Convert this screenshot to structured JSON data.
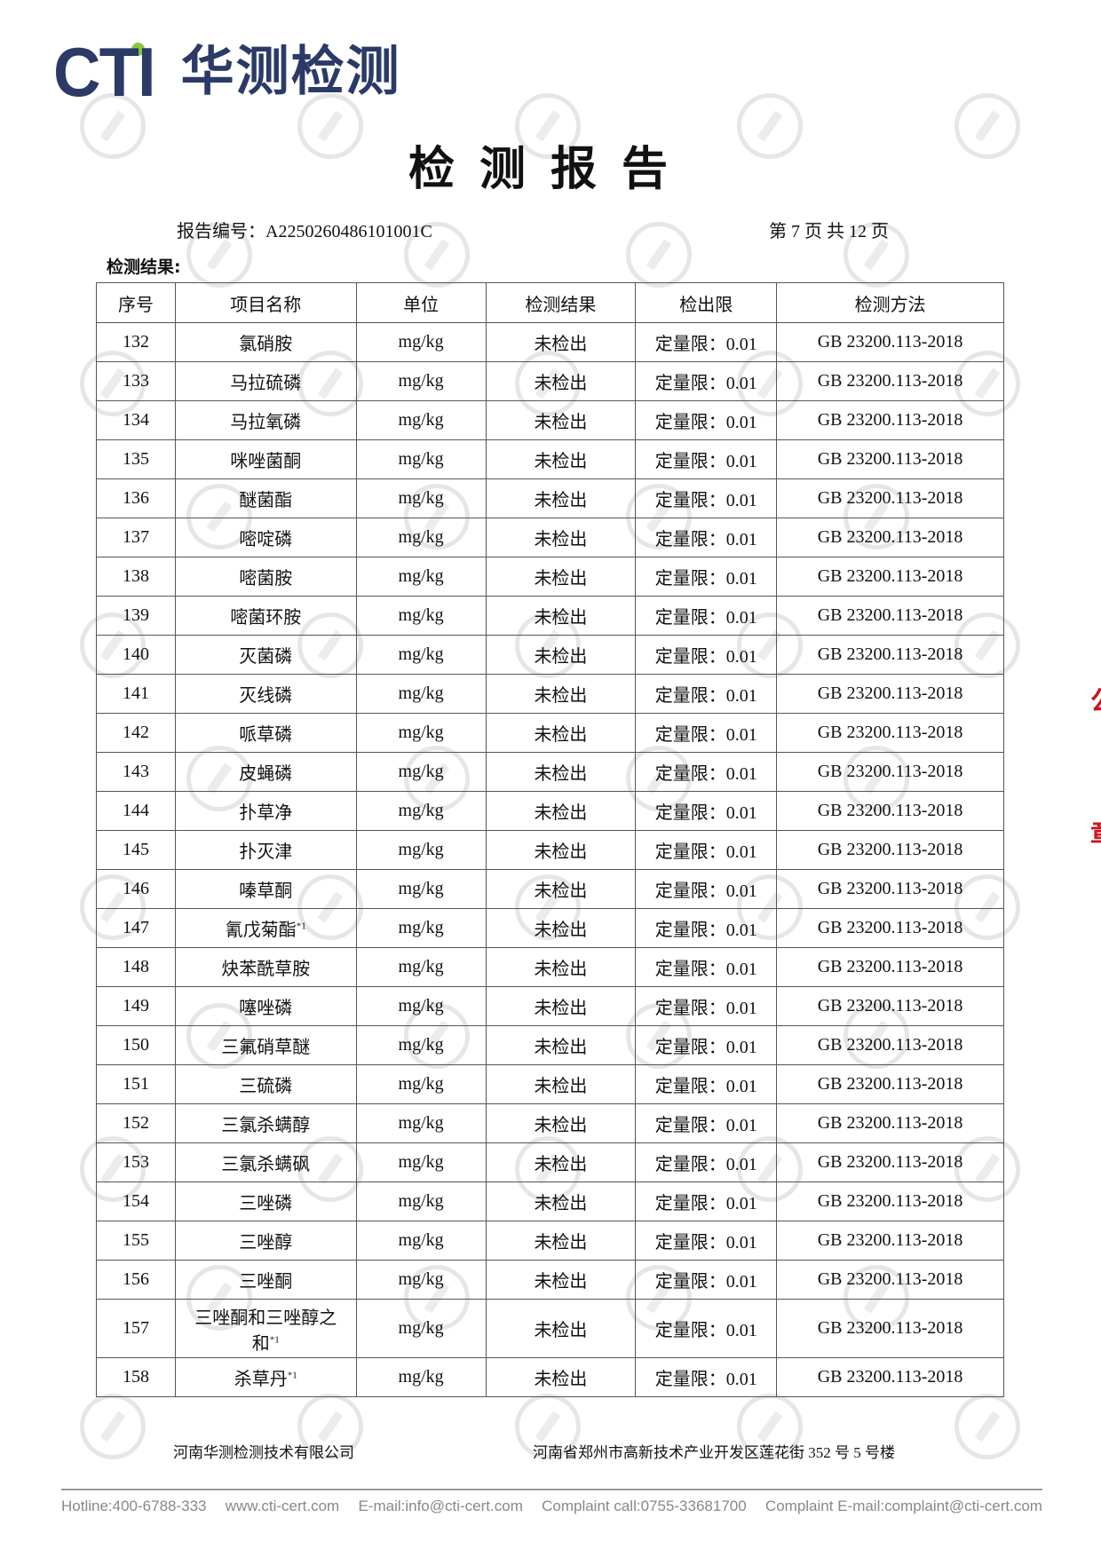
{
  "logo": {
    "brand": "CTI",
    "name_cn": "华测检测",
    "brand_color": "#2b3a67",
    "dot_color": "#8dc63f"
  },
  "watermark": "CTI",
  "title": "检测报告",
  "report_no_label": "报告编号：A2250260486101001C",
  "page_info": "第 7 页  共 12 页",
  "section_label": "检测结果:",
  "table": {
    "headers": [
      "序号",
      "项目名称",
      "单位",
      "检测结果",
      "检出限",
      "检测方法"
    ],
    "rows": [
      {
        "no": "132",
        "name": "氯硝胺",
        "sup": "",
        "unit": "mg/kg",
        "result": "未检出",
        "limit": "定量限：0.01",
        "method": "GB 23200.113-2018"
      },
      {
        "no": "133",
        "name": "马拉硫磷",
        "sup": "",
        "unit": "mg/kg",
        "result": "未检出",
        "limit": "定量限：0.01",
        "method": "GB 23200.113-2018"
      },
      {
        "no": "134",
        "name": "马拉氧磷",
        "sup": "",
        "unit": "mg/kg",
        "result": "未检出",
        "limit": "定量限：0.01",
        "method": "GB 23200.113-2018"
      },
      {
        "no": "135",
        "name": "咪唑菌酮",
        "sup": "",
        "unit": "mg/kg",
        "result": "未检出",
        "limit": "定量限：0.01",
        "method": "GB 23200.113-2018"
      },
      {
        "no": "136",
        "name": "醚菌酯",
        "sup": "",
        "unit": "mg/kg",
        "result": "未检出",
        "limit": "定量限：0.01",
        "method": "GB 23200.113-2018"
      },
      {
        "no": "137",
        "name": "嘧啶磷",
        "sup": "",
        "unit": "mg/kg",
        "result": "未检出",
        "limit": "定量限：0.01",
        "method": "GB 23200.113-2018"
      },
      {
        "no": "138",
        "name": "嘧菌胺",
        "sup": "",
        "unit": "mg/kg",
        "result": "未检出",
        "limit": "定量限：0.01",
        "method": "GB 23200.113-2018"
      },
      {
        "no": "139",
        "name": "嘧菌环胺",
        "sup": "",
        "unit": "mg/kg",
        "result": "未检出",
        "limit": "定量限：0.01",
        "method": "GB 23200.113-2018"
      },
      {
        "no": "140",
        "name": "灭菌磷",
        "sup": "",
        "unit": "mg/kg",
        "result": "未检出",
        "limit": "定量限：0.01",
        "method": "GB 23200.113-2018"
      },
      {
        "no": "141",
        "name": "灭线磷",
        "sup": "",
        "unit": "mg/kg",
        "result": "未检出",
        "limit": "定量限：0.01",
        "method": "GB 23200.113-2018"
      },
      {
        "no": "142",
        "name": "哌草磷",
        "sup": "",
        "unit": "mg/kg",
        "result": "未检出",
        "limit": "定量限：0.01",
        "method": "GB 23200.113-2018"
      },
      {
        "no": "143",
        "name": "皮蝇磷",
        "sup": "",
        "unit": "mg/kg",
        "result": "未检出",
        "limit": "定量限：0.01",
        "method": "GB 23200.113-2018"
      },
      {
        "no": "144",
        "name": "扑草净",
        "sup": "",
        "unit": "mg/kg",
        "result": "未检出",
        "limit": "定量限：0.01",
        "method": "GB 23200.113-2018"
      },
      {
        "no": "145",
        "name": "扑灭津",
        "sup": "",
        "unit": "mg/kg",
        "result": "未检出",
        "limit": "定量限：0.01",
        "method": "GB 23200.113-2018"
      },
      {
        "no": "146",
        "name": "嗪草酮",
        "sup": "",
        "unit": "mg/kg",
        "result": "未检出",
        "limit": "定量限：0.01",
        "method": "GB 23200.113-2018"
      },
      {
        "no": "147",
        "name": "氰戊菊酯",
        "sup": "*1",
        "unit": "mg/kg",
        "result": "未检出",
        "limit": "定量限：0.01",
        "method": "GB 23200.113-2018"
      },
      {
        "no": "148",
        "name": "炔苯酰草胺",
        "sup": "",
        "unit": "mg/kg",
        "result": "未检出",
        "limit": "定量限：0.01",
        "method": "GB 23200.113-2018"
      },
      {
        "no": "149",
        "name": "噻唑磷",
        "sup": "",
        "unit": "mg/kg",
        "result": "未检出",
        "limit": "定量限：0.01",
        "method": "GB 23200.113-2018"
      },
      {
        "no": "150",
        "name": "三氟硝草醚",
        "sup": "",
        "unit": "mg/kg",
        "result": "未检出",
        "limit": "定量限：0.01",
        "method": "GB 23200.113-2018"
      },
      {
        "no": "151",
        "name": "三硫磷",
        "sup": "",
        "unit": "mg/kg",
        "result": "未检出",
        "limit": "定量限：0.01",
        "method": "GB 23200.113-2018"
      },
      {
        "no": "152",
        "name": "三氯杀螨醇",
        "sup": "",
        "unit": "mg/kg",
        "result": "未检出",
        "limit": "定量限：0.01",
        "method": "GB 23200.113-2018"
      },
      {
        "no": "153",
        "name": "三氯杀螨砜",
        "sup": "",
        "unit": "mg/kg",
        "result": "未检出",
        "limit": "定量限：0.01",
        "method": "GB 23200.113-2018"
      },
      {
        "no": "154",
        "name": "三唑磷",
        "sup": "",
        "unit": "mg/kg",
        "result": "未检出",
        "limit": "定量限：0.01",
        "method": "GB 23200.113-2018"
      },
      {
        "no": "155",
        "name": "三唑醇",
        "sup": "",
        "unit": "mg/kg",
        "result": "未检出",
        "limit": "定量限：0.01",
        "method": "GB 23200.113-2018"
      },
      {
        "no": "156",
        "name": "三唑酮",
        "sup": "",
        "unit": "mg/kg",
        "result": "未检出",
        "limit": "定量限：0.01",
        "method": "GB 23200.113-2018"
      },
      {
        "no": "157",
        "name": "三唑酮和三唑醇之和",
        "sup": "*1",
        "unit": "mg/kg",
        "result": "未检出",
        "limit": "定量限：0.01",
        "method": "GB 23200.113-2018"
      },
      {
        "no": "158",
        "name": "杀草丹",
        "sup": "*1",
        "unit": "mg/kg",
        "result": "未检出",
        "limit": "定量限：0.01",
        "method": "GB 23200.113-2018"
      }
    ]
  },
  "footer": {
    "company": "河南华测检测技术有限公司",
    "address": "河南省郑州市高新技术产业开发区莲花街 352 号 5 号楼",
    "contacts": [
      "Hotline:400-6788-333",
      "www.cti-cert.com",
      "E-mail:info@cti-cert.com",
      "Complaint call:0755-33681700",
      "Complaint E-mail:complaint@cti-cert.com"
    ]
  },
  "stamp_color": "#c8161d"
}
